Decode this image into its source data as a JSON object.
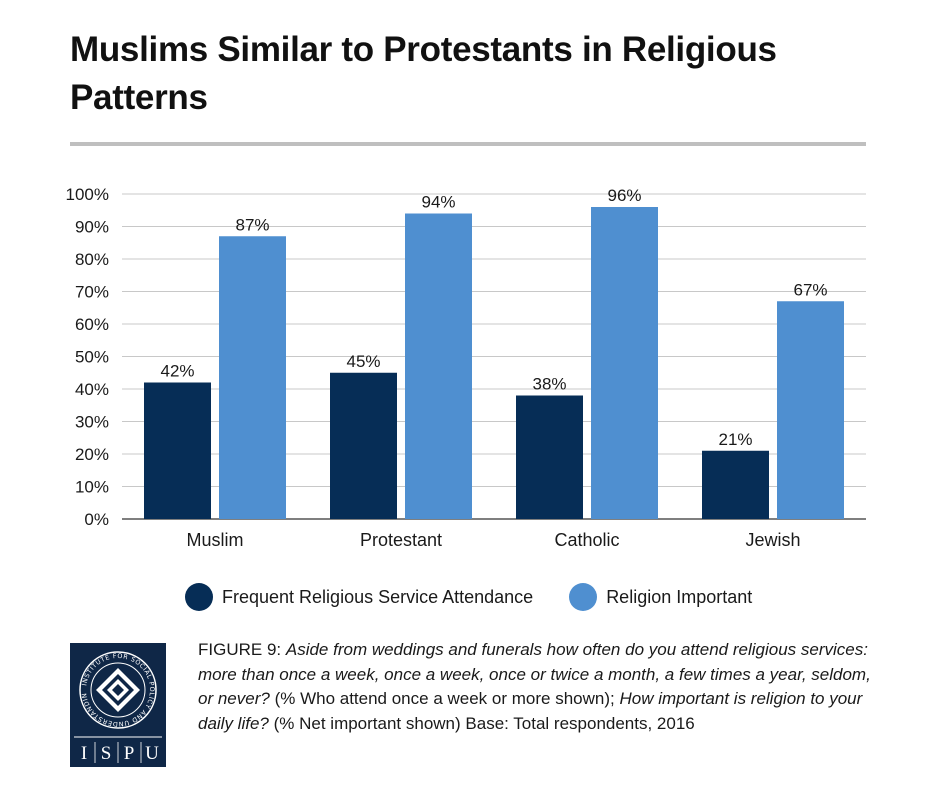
{
  "title": "Muslims Similar to Protestants in Religious Patterns",
  "colors": {
    "attendance": "#062d56",
    "importance": "#4f8fd0",
    "grid": "#c8c8c8",
    "logo_bg": "#0f2747"
  },
  "chart_data": {
    "type": "bar",
    "title": "Muslims Similar to Protestants in Religious Patterns",
    "xlabel": "",
    "ylabel": "",
    "ylim": [
      0,
      100
    ],
    "yticks": [
      "0%",
      "10%",
      "20%",
      "30%",
      "40%",
      "50%",
      "60%",
      "70%",
      "80%",
      "90%",
      "100%"
    ],
    "categories": [
      "Muslim",
      "Protestant",
      "Catholic",
      "Jewish"
    ],
    "series": [
      {
        "name": "Frequent Religious Service Attendance",
        "values": [
          42,
          45,
          38,
          21
        ],
        "labels": [
          "42%",
          "45%",
          "38%",
          "21%"
        ]
      },
      {
        "name": "Religion Important",
        "values": [
          87,
          94,
          96,
          67
        ],
        "labels": [
          "87%",
          "94%",
          "96%",
          "67%"
        ]
      }
    ],
    "legend_position": "bottom"
  },
  "legend": [
    {
      "label": "Frequent Religious Service Attendance"
    },
    {
      "label": "Religion Important"
    }
  ],
  "caption": {
    "figure_label": "FIGURE 9:",
    "question1": "Aside from weddings and funerals how often do you attend religious services: more than once a week, once a week, once or twice a month, a few times a year, seldom, or never?",
    "note1": "(% Who attend once a week or more shown);",
    "question2": "How important is religion to your daily life?",
    "note2": "(% Net important shown) Base: Total respondents, 2016"
  },
  "logo": {
    "ring_text": "INSTITUTE FOR SOCIAL POLICY AND UNDERSTANDING",
    "letters": [
      "I",
      "S",
      "P",
      "U"
    ]
  }
}
